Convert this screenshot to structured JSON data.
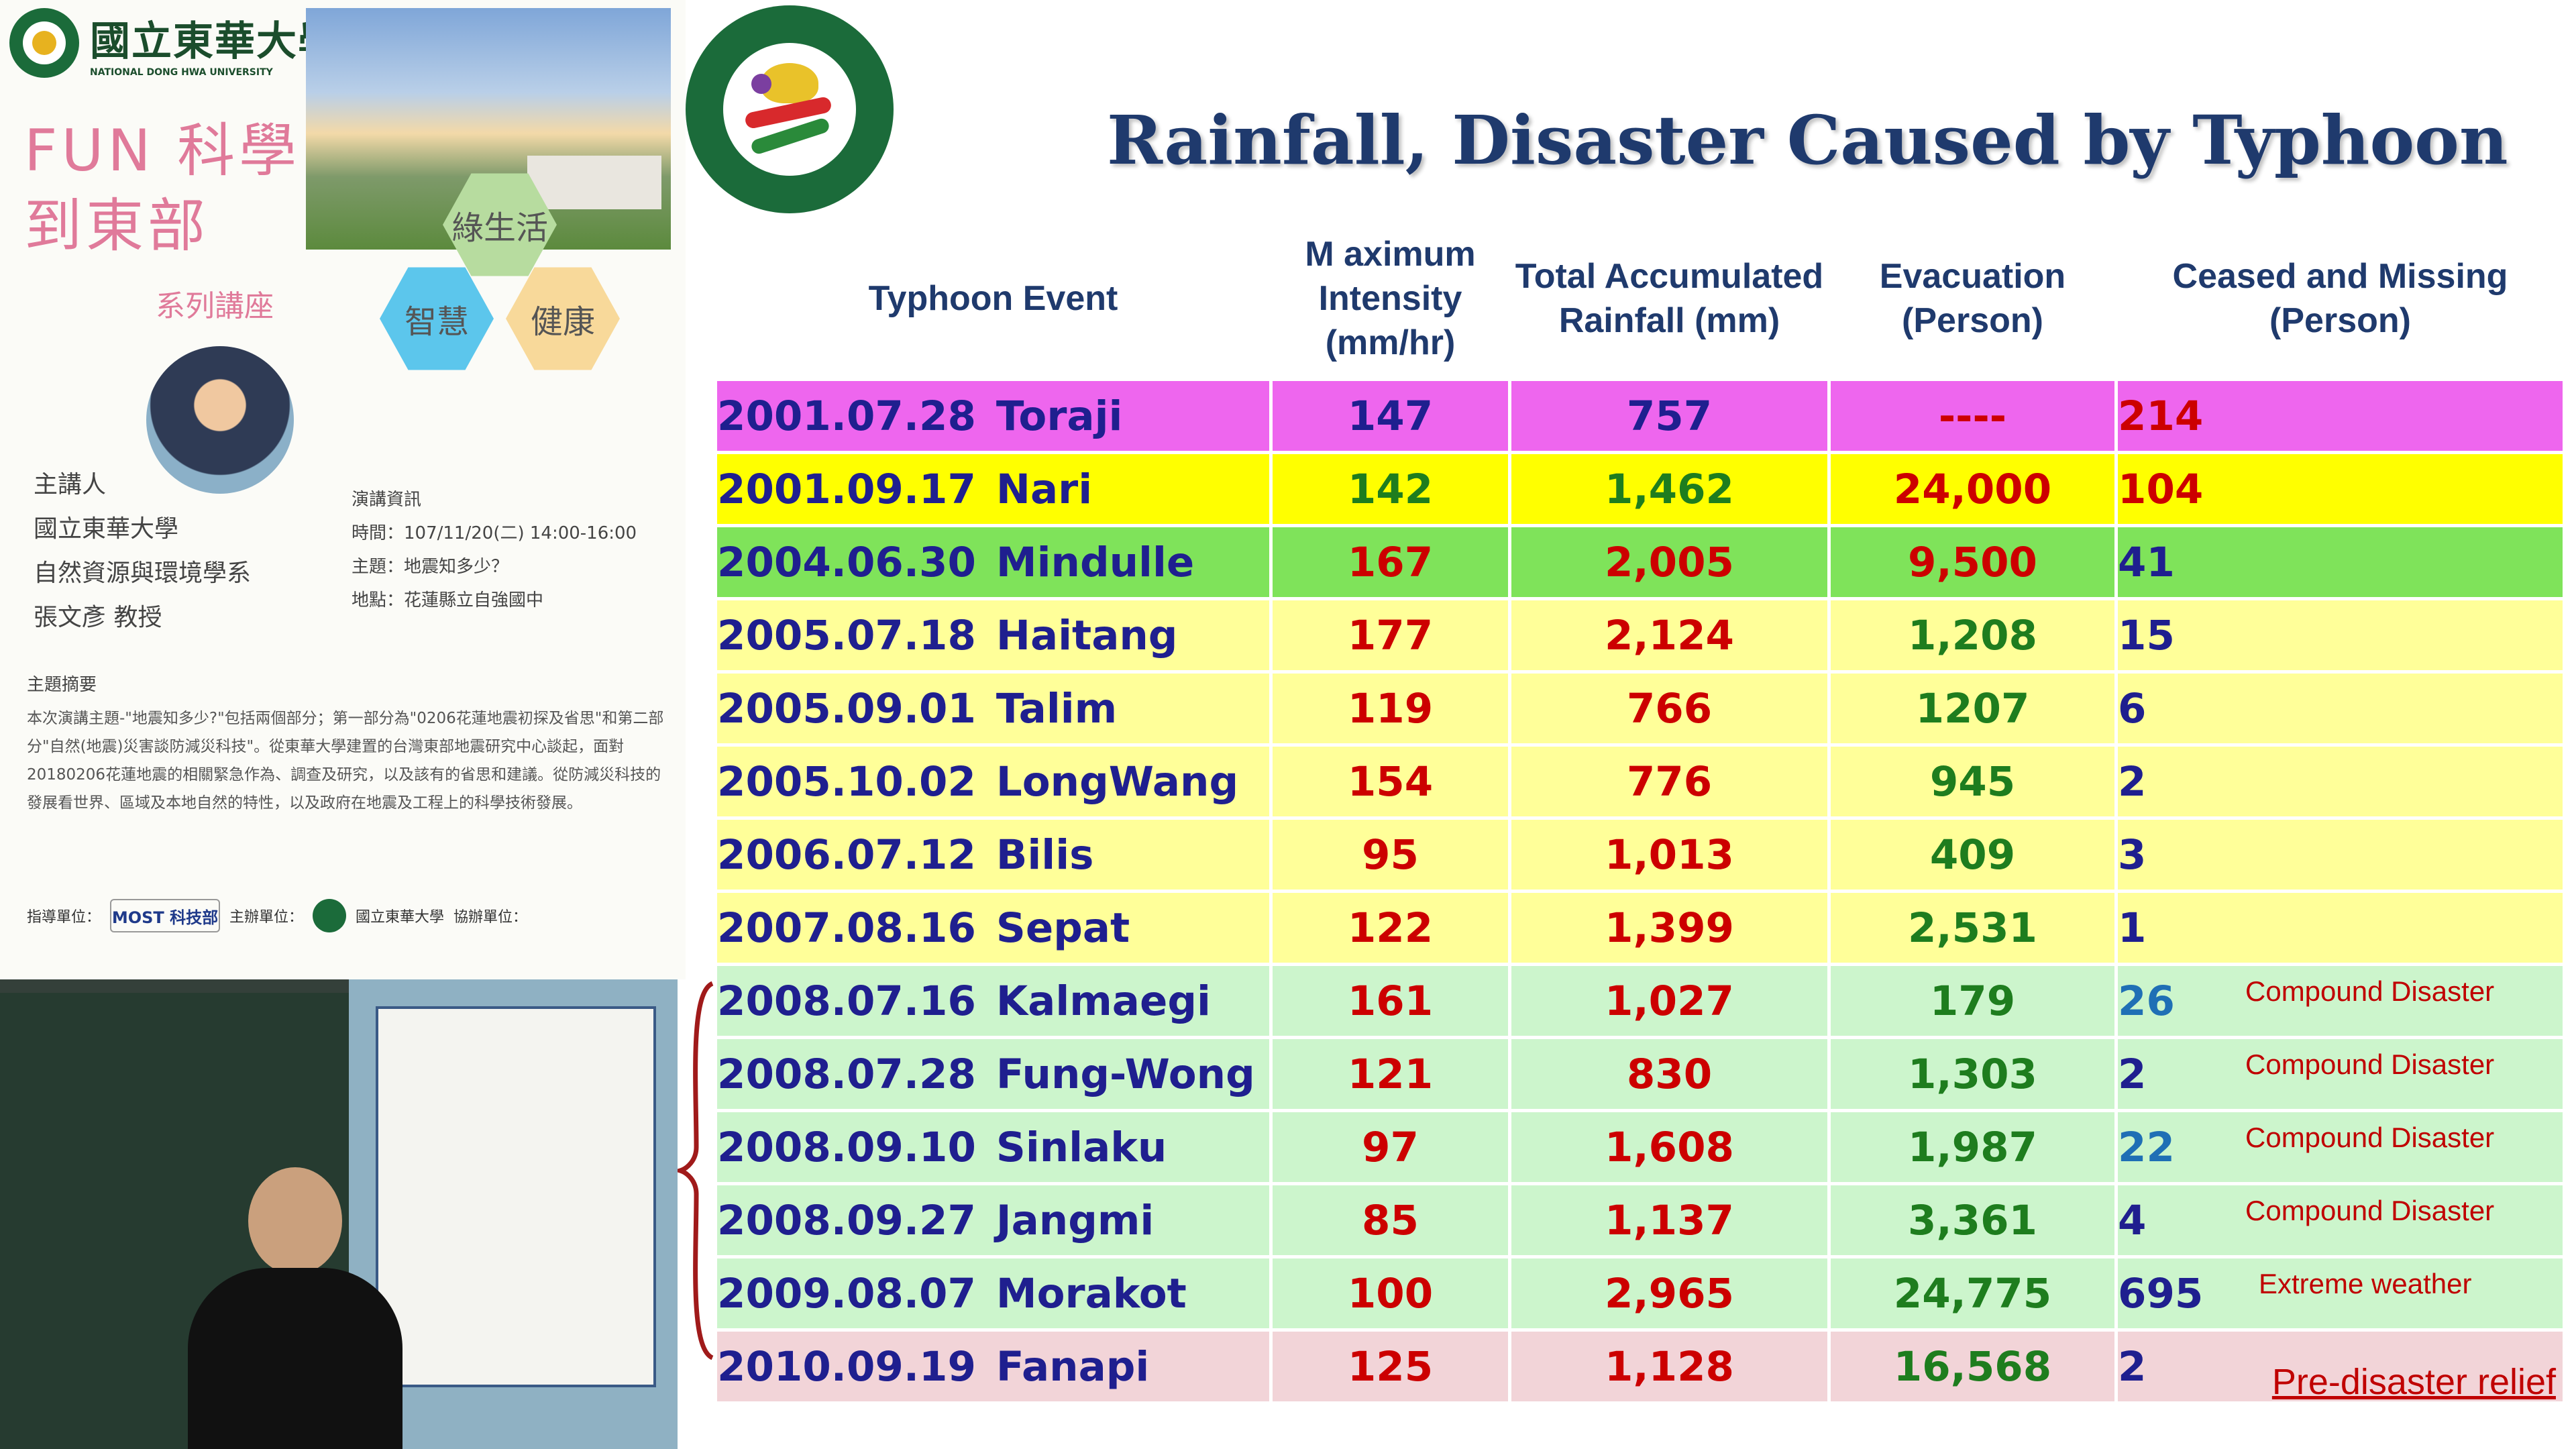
{
  "poster": {
    "university_zh": "國立東華大學",
    "university_en": "NATIONAL DONG HWA UNIVERSITY",
    "series_title_line1": "FUN 科學",
    "series_title_line2": "到東部",
    "series_subtitle": "系列講座",
    "hex_labels": [
      "綠生活",
      "智慧",
      "健康"
    ],
    "speaker": [
      "主講人",
      "國立東華大學",
      "自然資源與環境學系",
      "張文彥 教授"
    ],
    "lecture_info": [
      "演講資訊",
      "時間：107/11/20(二) 14:00-16:00",
      "主題：地震知多少？",
      "地點：花蓮縣立自強國中"
    ],
    "abstract_heading": "主題摘要",
    "abstract": "本次演講主題-\"地震知多少?\"包括兩個部分；第一部分為\"0206花蓮地震初探及省思\"和第二部分\"自然(地震)災害談防減災科技\"。從東華大學建置的台灣東部地震研究中心談起，面對20180206花蓮地震的相關緊急作為、調查及研究，以及該有的省思和建議。從防減災科技的發展看世界、區域及本地自然的特性，以及政府在地震及工程上的科學技術發展。",
    "sponsor_guide": "指導單位：",
    "sponsor_guide_name": "MOST 科技部",
    "sponsor_host": "主辦單位：",
    "sponsor_host_name": "國立東華大學",
    "sponsor_coop": "協辦單位："
  },
  "title": "Rainfall, Disaster Caused by Typhoon",
  "table": {
    "headers": [
      "Typhoon Event",
      "M aximum Intensity (mm/hr)",
      "Total Accumulated Rainfall (mm)",
      "Evacuation (Person)",
      "Ceased and Missing (Person)"
    ],
    "rows": [
      {
        "date": "2001.07.28",
        "name": "Toraji",
        "intensity": "147",
        "rainfall": "757",
        "evacuation": "----",
        "missing": "214",
        "note": "",
        "bg": "#ee66ee",
        "c_int": "#1f1f8f",
        "c_rain": "#1f1f8f",
        "c_evac": "#cc0000",
        "c_miss": "#cc0000"
      },
      {
        "date": "2001.09.17",
        "name": "Nari",
        "intensity": "142",
        "rainfall": "1,462",
        "evacuation": "24,000",
        "missing": "104",
        "note": "",
        "bg": "#ffff00",
        "c_int": "#1e7d1e",
        "c_rain": "#1e7d1e",
        "c_evac": "#cc0000",
        "c_miss": "#cc0000"
      },
      {
        "date": "2004.06.30",
        "name": "Mindulle",
        "intensity": "167",
        "rainfall": "2,005",
        "evacuation": "9,500",
        "missing": "41",
        "note": "",
        "bg": "#7fe35a",
        "c_int": "#cc0000",
        "c_rain": "#cc0000",
        "c_evac": "#cc0000",
        "c_miss": "#1f1f8f"
      },
      {
        "date": "2005.07.18",
        "name": "Haitang",
        "intensity": "177",
        "rainfall": "2,124",
        "evacuation": "1,208",
        "missing": "15",
        "note": "",
        "bg": "#ffff99",
        "c_int": "#cc0000",
        "c_rain": "#cc0000",
        "c_evac": "#1e7d1e",
        "c_miss": "#1f1f8f"
      },
      {
        "date": "2005.09.01",
        "name": "Talim",
        "intensity": "119",
        "rainfall": "766",
        "evacuation": "1207",
        "missing": "6",
        "note": "",
        "bg": "#ffff99",
        "c_int": "#cc0000",
        "c_rain": "#cc0000",
        "c_evac": "#1e7d1e",
        "c_miss": "#1f1f8f"
      },
      {
        "date": "2005.10.02",
        "name": "LongWang",
        "intensity": "154",
        "rainfall": "776",
        "evacuation": "945",
        "missing": "2",
        "note": "",
        "bg": "#ffff99",
        "c_int": "#cc0000",
        "c_rain": "#cc0000",
        "c_evac": "#1e7d1e",
        "c_miss": "#1f1f8f"
      },
      {
        "date": "2006.07.12",
        "name": "Bilis",
        "intensity": "95",
        "rainfall": "1,013",
        "evacuation": "409",
        "missing": "3",
        "note": "",
        "bg": "#ffff99",
        "c_int": "#cc0000",
        "c_rain": "#cc0000",
        "c_evac": "#1e7d1e",
        "c_miss": "#1f1f8f"
      },
      {
        "date": "2007.08.16",
        "name": "Sepat",
        "intensity": "122",
        "rainfall": "1,399",
        "evacuation": "2,531",
        "missing": "1",
        "note": "",
        "bg": "#ffff99",
        "c_int": "#cc0000",
        "c_rain": "#cc0000",
        "c_evac": "#1e7d1e",
        "c_miss": "#1f1f8f"
      },
      {
        "date": "2008.07.16",
        "name": "Kalmaegi",
        "intensity": "161",
        "rainfall": "1,027",
        "evacuation": "179",
        "missing": "26",
        "note": "Compound Disaster",
        "bg": "#ccf5cc",
        "c_int": "#cc0000",
        "c_rain": "#cc0000",
        "c_evac": "#1e7d1e",
        "c_miss": "#1f6fb5"
      },
      {
        "date": "2008.07.28",
        "name": "Fung-Wong",
        "intensity": "121",
        "rainfall": "830",
        "evacuation": "1,303",
        "missing": "2",
        "note": "Compound Disaster",
        "bg": "#ccf5cc",
        "c_int": "#cc0000",
        "c_rain": "#cc0000",
        "c_evac": "#1e7d1e",
        "c_miss": "#1f1f8f"
      },
      {
        "date": "2008.09.10",
        "name": "Sinlaku",
        "intensity": "97",
        "rainfall": "1,608",
        "evacuation": "1,987",
        "missing": "22",
        "note": "Compound Disaster",
        "bg": "#ccf5cc",
        "c_int": "#cc0000",
        "c_rain": "#cc0000",
        "c_evac": "#1e7d1e",
        "c_miss": "#1f6fb5"
      },
      {
        "date": "2008.09.27",
        "name": "Jangmi",
        "intensity": "85",
        "rainfall": "1,137",
        "evacuation": "3,361",
        "missing": "4",
        "note": "Compound Disaster",
        "bg": "#ccf5cc",
        "c_int": "#cc0000",
        "c_rain": "#cc0000",
        "c_evac": "#1e7d1e",
        "c_miss": "#1f1f8f"
      },
      {
        "date": "2009.08.07",
        "name": "Morakot",
        "intensity": "100",
        "rainfall": "2,965",
        "evacuation": "24,775",
        "missing": "695",
        "note": "Extreme weather",
        "bg": "#ccf5cc",
        "c_int": "#cc0000",
        "c_rain": "#cc0000",
        "c_evac": "#1e7d1e",
        "c_miss": "#1f1f8f"
      },
      {
        "date": "2010.09.19",
        "name": "Fanapi",
        "intensity": "125",
        "rainfall": "1,128",
        "evacuation": "16,568",
        "missing": "2",
        "note": "Pre-disaster relief",
        "bg": "#f2d4d8",
        "c_int": "#cc0000",
        "c_rain": "#cc0000",
        "c_evac": "#1e7d1e",
        "c_miss": "#1f1f8f"
      }
    ]
  },
  "icons": {
    "small_seal": "university-seal-icon",
    "big_seal": "university-seal-icon",
    "brace": "curly-brace-icon"
  }
}
